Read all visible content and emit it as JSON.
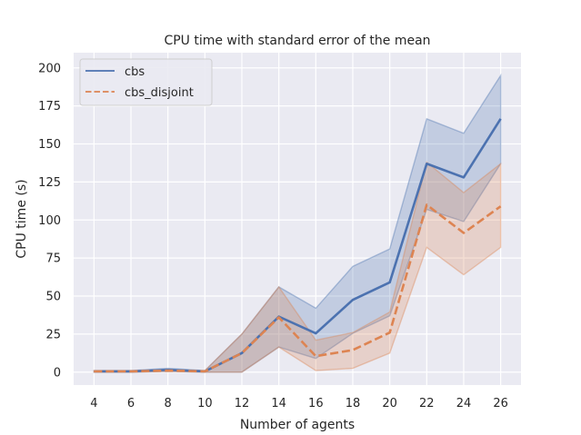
{
  "chart_data": {
    "type": "line",
    "title": "CPU time with standard error of the mean",
    "xlabel": "Number of agents",
    "ylabel": "CPU time (s)",
    "x": [
      4,
      6,
      8,
      10,
      12,
      14,
      16,
      18,
      20,
      22,
      24,
      26
    ],
    "xticks": [
      4,
      6,
      8,
      10,
      12,
      14,
      16,
      18,
      20,
      22,
      24,
      26
    ],
    "yticks": [
      0,
      25,
      50,
      75,
      100,
      125,
      150,
      175,
      200
    ],
    "xlim": [
      2.9,
      27.1
    ],
    "ylim": [
      -8.5,
      210
    ],
    "grid": true,
    "legend": "top-left",
    "series": [
      {
        "name": "cbs",
        "color": "#4c72b0",
        "style": "solid",
        "values": [
          0.5,
          0.5,
          1.5,
          0.5,
          12.5,
          36.5,
          25.5,
          47.5,
          59,
          137,
          128,
          166.5
        ],
        "lower": [
          0,
          0,
          0.5,
          0,
          0,
          16.5,
          9,
          25.5,
          37,
          107,
          99,
          137
        ],
        "upper": [
          1,
          1,
          2.5,
          1,
          25,
          56,
          42,
          69.5,
          81,
          166.5,
          157,
          195
        ]
      },
      {
        "name": "cbs_disjoint",
        "color": "#dd8452",
        "style": "dashed",
        "values": [
          0.5,
          0.5,
          1,
          0.5,
          12.5,
          36,
          10.5,
          14.5,
          26,
          110,
          91.5,
          109
        ],
        "lower": [
          0,
          0,
          0.5,
          0,
          0,
          16.5,
          1,
          2.5,
          12.5,
          82,
          64,
          82
        ],
        "upper": [
          1,
          1,
          1.5,
          1,
          25,
          56,
          21,
          26,
          39.5,
          138,
          118,
          137
        ]
      }
    ]
  }
}
